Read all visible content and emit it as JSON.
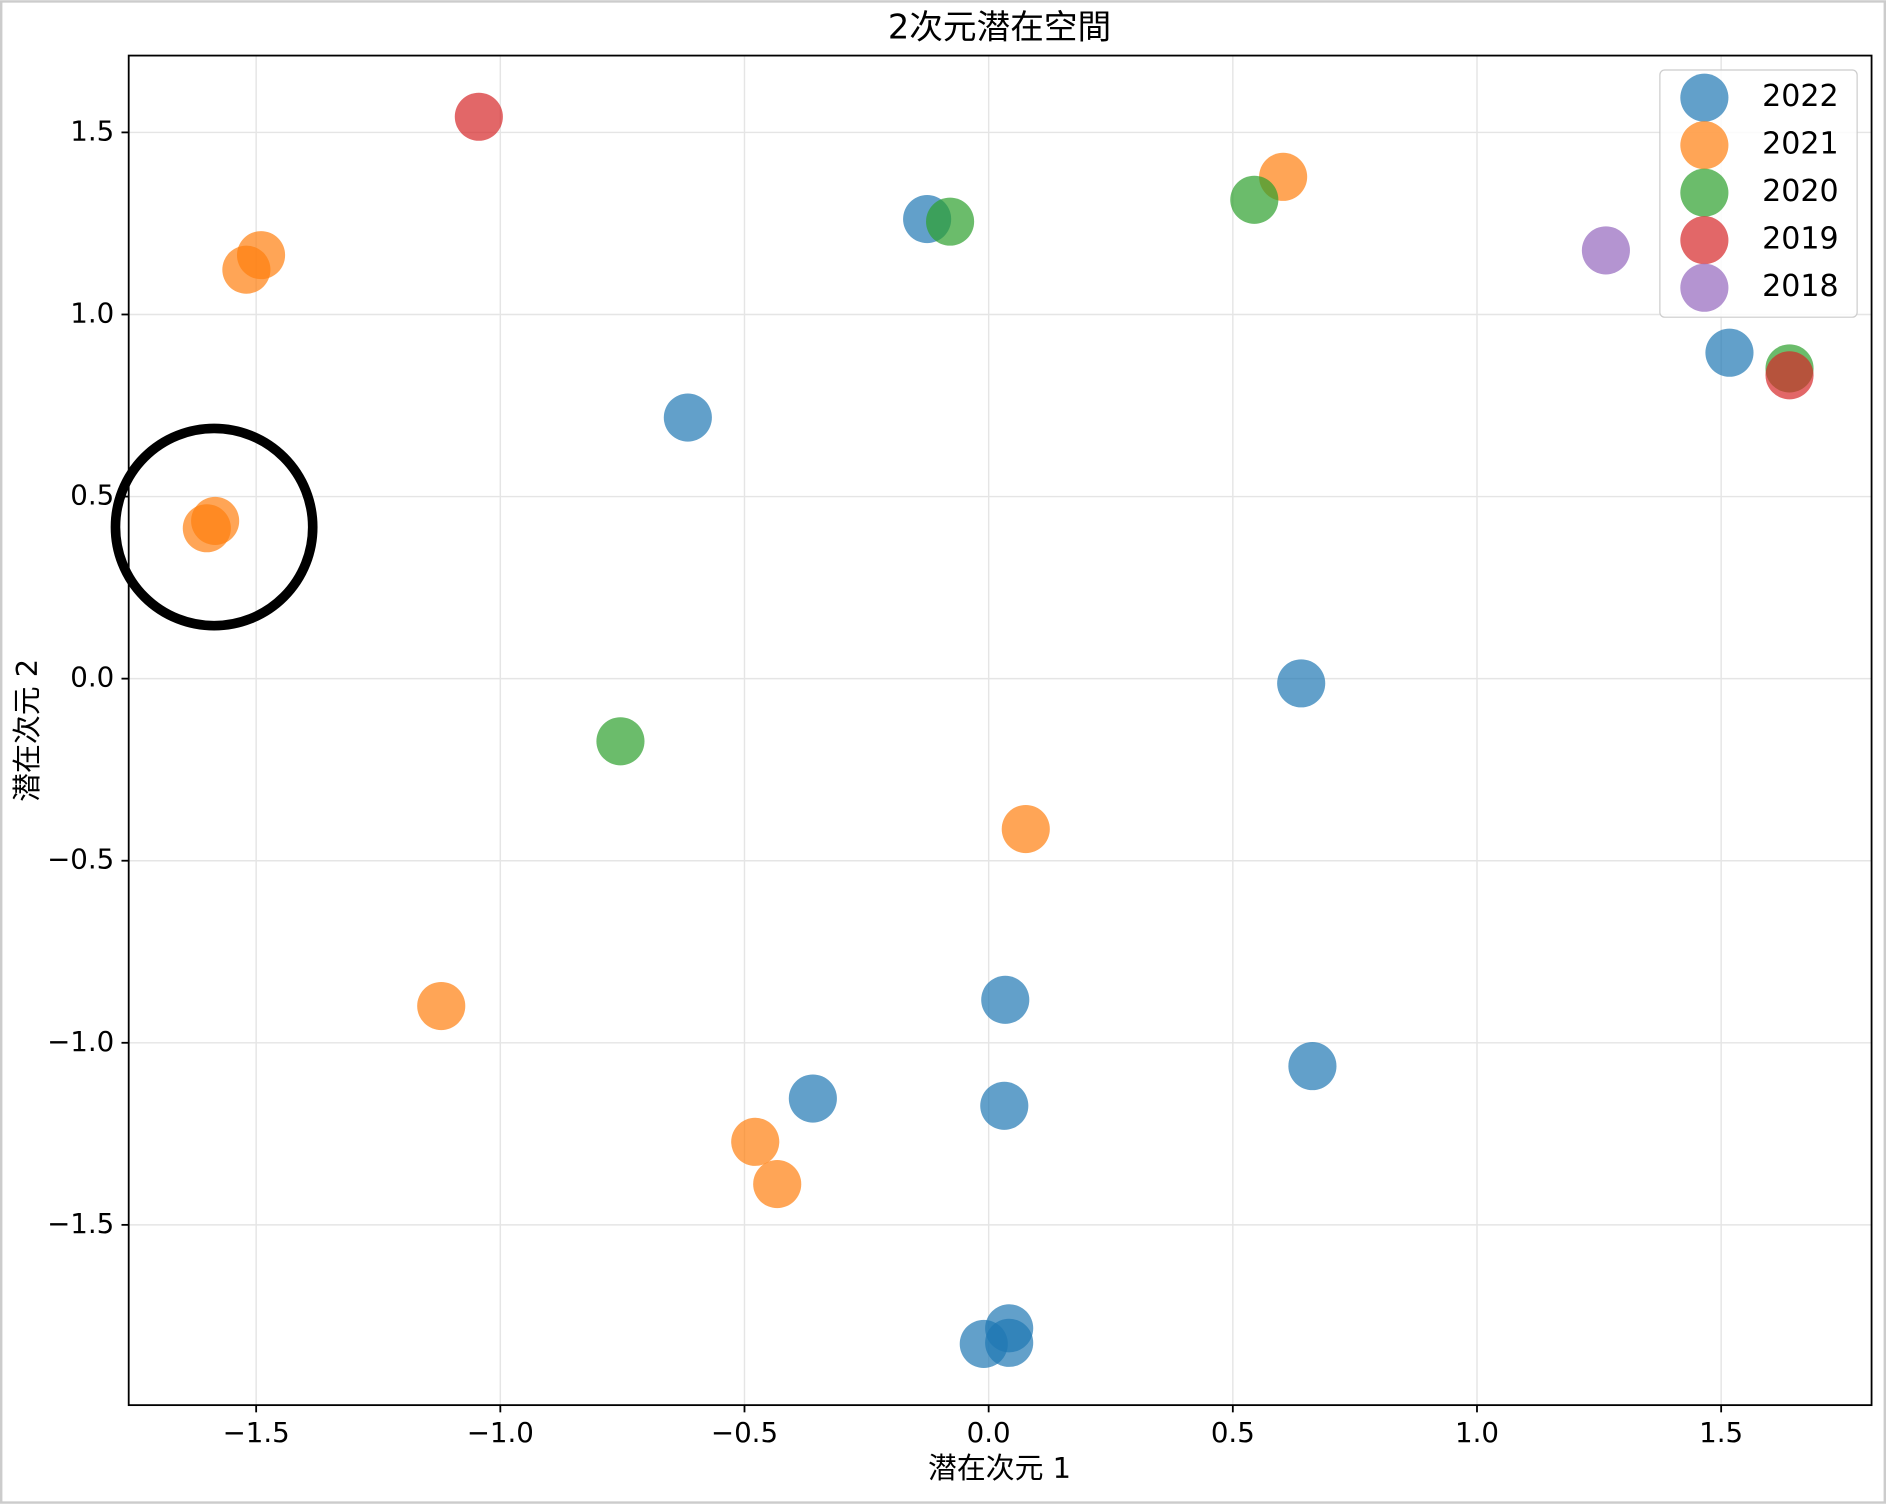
{
  "chart_data": {
    "type": "scatter",
    "title": "2次元潜在空間",
    "x_label": "潜在次元 1",
    "y_label": "潜在次元 2",
    "xlim": [
      -1.761,
      1.808
    ],
    "ylim": [
      -1.995,
      1.711
    ],
    "xticks": [
      {
        "value": -1.5,
        "label": "−1.5"
      },
      {
        "value": -1.0,
        "label": "−1.0"
      },
      {
        "value": -0.5,
        "label": "−0.5"
      },
      {
        "value": 0,
        "label": "0.0"
      },
      0.5,
      {
        "value": 1,
        "label": "1.0"
      },
      1.5
    ],
    "yticks": [
      {
        "value": -1.5,
        "label": "−1.5"
      },
      {
        "value": -1.0,
        "label": "−1.0"
      },
      {
        "value": -0.5,
        "label": "−0.5"
      },
      {
        "value": 0,
        "label": "0.0"
      },
      0.5,
      {
        "value": 1,
        "label": "1.0"
      },
      1.5
    ],
    "grid": true,
    "legend": "upper right",
    "series": [
      {
        "name": "2022",
        "color": "#1f77b4",
        "x": [
          -0.126,
          -0.616,
          1.517,
          0.64,
          0.034,
          0.663,
          -0.36,
          0.032,
          0.042,
          -0.01,
          0.042
        ],
        "y": [
          1.262,
          0.717,
          0.895,
          -0.013,
          -0.882,
          -1.064,
          -1.153,
          -1.173,
          -1.784,
          -1.827,
          -1.824
        ]
      },
      {
        "name": "2021",
        "color": "#ff7f0e",
        "x": [
          -1.49,
          -1.52,
          -1.584,
          -1.601,
          0.603,
          0.076,
          -1.121,
          -0.478,
          -0.433
        ],
        "y": [
          1.163,
          1.123,
          0.433,
          0.413,
          1.378,
          -0.413,
          -0.899,
          -1.272,
          -1.388
        ]
      },
      {
        "name": "2020",
        "color": "#2ca02c",
        "x": [
          -0.079,
          0.544,
          -0.754,
          1.64
        ],
        "y": [
          1.255,
          1.315,
          -0.172,
          0.852
        ]
      },
      {
        "name": "2019",
        "color": "#d62728",
        "x": [
          -1.044,
          1.64
        ],
        "y": [
          1.543,
          0.833
        ]
      },
      {
        "name": "2018",
        "color": "#9467bd",
        "x": [
          1.264
        ],
        "y": [
          1.176
        ]
      }
    ]
  }
}
